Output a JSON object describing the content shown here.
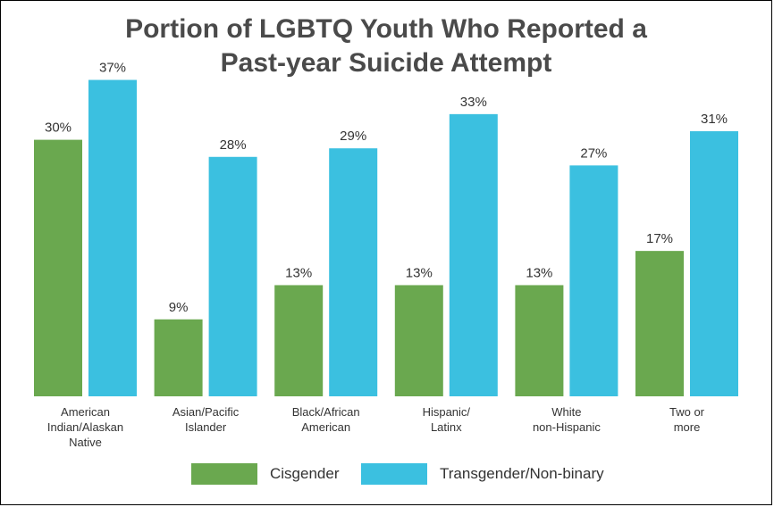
{
  "chart_data": {
    "type": "bar",
    "title_line1": "Portion of LGBTQ Youth Who Reported a",
    "title_line2": "Past-year Suicide Attempt",
    "categories": [
      [
        "American",
        "Indian/Alaskan",
        "Native"
      ],
      [
        "Asian/Pacific",
        "Islander"
      ],
      [
        "Black/African",
        "American"
      ],
      [
        "Hispanic/",
        "Latinx"
      ],
      [
        "White",
        "non-Hispanic"
      ],
      [
        "Two or",
        "more"
      ]
    ],
    "series": [
      {
        "name": "Cisgender",
        "color": "#6aa84f",
        "values": [
          30,
          9,
          13,
          13,
          13,
          17
        ],
        "labels": [
          "30%",
          "9%",
          "13%",
          "13%",
          "13%",
          "17%"
        ]
      },
      {
        "name": "Transgender/Non-binary",
        "color": "#3bc0e0",
        "values": [
          37,
          28,
          29,
          33,
          27,
          31
        ],
        "labels": [
          "37%",
          "28%",
          "29%",
          "33%",
          "27%",
          "31%"
        ]
      }
    ],
    "unit": "%",
    "ylim": [
      0,
      40
    ],
    "grid": false,
    "legend_position": "bottom"
  }
}
